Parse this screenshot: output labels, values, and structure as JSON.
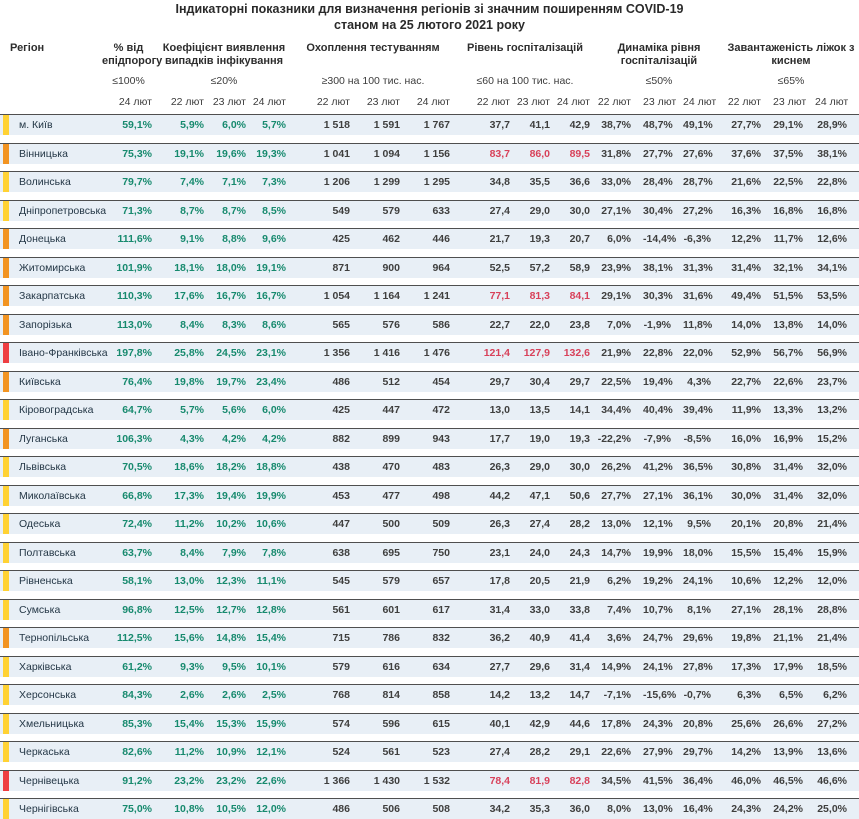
{
  "title": {
    "line1": "Індикаторні показники для визначення регіонів зі значним поширенням COVID-19",
    "line2": "станом на 25 лютого 2021 року"
  },
  "colors": {
    "yellow": "#FFD234",
    "orange": "#F29422",
    "red": "#EE3E42",
    "teal_text": "#178a6e",
    "dark_text": "#3f3f3e",
    "red_text": "#d8415a",
    "row_bg": "#e8eff6"
  },
  "chart_data": {
    "type": "table",
    "title": "Індикаторні показники для визначення регіонів зі значним поширенням COVID-19 станом на 25 лютого 2021 року",
    "region_header": "Регіон",
    "groups": [
      {
        "label": "% від епідпорогу",
        "threshold": "≤100%",
        "dates": [
          "24 лют"
        ]
      },
      {
        "label": "Коефіцієнт виявлення випадків інфікування",
        "threshold": "≤20%",
        "dates": [
          "22 лют",
          "23 лют",
          "24 лют"
        ]
      },
      {
        "label": "Охоплення тестуванням",
        "threshold": "≥300 на 100 тис. нас.",
        "dates": [
          "22 лют",
          "23 лют",
          "24 лют"
        ]
      },
      {
        "label": "Рівень госпіталізацій",
        "threshold": "≤60 на 100 тис. нас.",
        "dates": [
          "22 лют",
          "23 лют",
          "24 лют"
        ]
      },
      {
        "label": "Динаміка рівня госпіталізацій",
        "threshold": "≤50%",
        "dates": [
          "22 лют",
          "23 лют",
          "24 лют"
        ]
      },
      {
        "label": "Завантаженість ліжок з киснем",
        "threshold": "≤65%",
        "dates": [
          "22 лют",
          "23 лют",
          "24 лют"
        ]
      }
    ],
    "rows": [
      {
        "region": "м. Київ",
        "indicator": "yellow",
        "epid": "59,1%",
        "koef": [
          "5,9%",
          "6,0%",
          "5,7%"
        ],
        "test": [
          "1 518",
          "1 591",
          "1 767"
        ],
        "hosp": [
          "37,7",
          "41,1",
          "42,9"
        ],
        "hosp_red": false,
        "dyn": [
          "38,7%",
          "48,7%",
          "49,1%"
        ],
        "beds": [
          "27,7%",
          "29,1%",
          "28,9%"
        ]
      },
      {
        "region": "Вінницька",
        "indicator": "orange",
        "epid": "75,3%",
        "koef": [
          "19,1%",
          "19,6%",
          "19,3%"
        ],
        "test": [
          "1 041",
          "1 094",
          "1 156"
        ],
        "hosp": [
          "83,7",
          "86,0",
          "89,5"
        ],
        "hosp_red": true,
        "dyn": [
          "31,8%",
          "27,7%",
          "27,6%"
        ],
        "beds": [
          "37,6%",
          "37,5%",
          "38,1%"
        ]
      },
      {
        "region": "Волинська",
        "indicator": "yellow",
        "epid": "79,7%",
        "koef": [
          "7,4%",
          "7,1%",
          "7,3%"
        ],
        "test": [
          "1 206",
          "1 299",
          "1 295"
        ],
        "hosp": [
          "34,8",
          "35,5",
          "36,6"
        ],
        "hosp_red": false,
        "dyn": [
          "33,0%",
          "28,4%",
          "28,7%"
        ],
        "beds": [
          "21,6%",
          "22,5%",
          "22,8%"
        ]
      },
      {
        "region": "Дніпропетровська",
        "indicator": "yellow",
        "epid": "71,3%",
        "koef": [
          "8,7%",
          "8,7%",
          "8,5%"
        ],
        "test": [
          "549",
          "579",
          "633"
        ],
        "hosp": [
          "27,4",
          "29,0",
          "30,0"
        ],
        "hosp_red": false,
        "dyn": [
          "27,1%",
          "30,4%",
          "27,2%"
        ],
        "beds": [
          "16,3%",
          "16,8%",
          "16,8%"
        ]
      },
      {
        "region": "Донецька",
        "indicator": "orange",
        "epid": "111,6%",
        "koef": [
          "9,1%",
          "8,8%",
          "9,6%"
        ],
        "test": [
          "425",
          "462",
          "446"
        ],
        "hosp": [
          "21,7",
          "19,3",
          "20,7"
        ],
        "hosp_red": false,
        "dyn": [
          "6,0%",
          "-14,4%",
          "-6,3%"
        ],
        "beds": [
          "12,2%",
          "11,7%",
          "12,6%"
        ]
      },
      {
        "region": "Житомирська",
        "indicator": "orange",
        "epid": "101,9%",
        "koef": [
          "18,1%",
          "18,0%",
          "19,1%"
        ],
        "test": [
          "871",
          "900",
          "964"
        ],
        "hosp": [
          "52,5",
          "57,2",
          "58,9"
        ],
        "hosp_red": false,
        "dyn": [
          "23,9%",
          "38,1%",
          "31,3%"
        ],
        "beds": [
          "31,4%",
          "32,1%",
          "34,1%"
        ]
      },
      {
        "region": "Закарпатська",
        "indicator": "orange",
        "epid": "110,3%",
        "koef": [
          "17,6%",
          "16,7%",
          "16,7%"
        ],
        "test": [
          "1 054",
          "1 164",
          "1 241"
        ],
        "hosp": [
          "77,1",
          "81,3",
          "84,1"
        ],
        "hosp_red": true,
        "dyn": [
          "29,1%",
          "30,3%",
          "31,6%"
        ],
        "beds": [
          "49,4%",
          "51,5%",
          "53,5%"
        ]
      },
      {
        "region": "Запорізька",
        "indicator": "orange",
        "epid": "113,0%",
        "koef": [
          "8,4%",
          "8,3%",
          "8,6%"
        ],
        "test": [
          "565",
          "576",
          "586"
        ],
        "hosp": [
          "22,7",
          "22,0",
          "23,8"
        ],
        "hosp_red": false,
        "dyn": [
          "7,0%",
          "-1,9%",
          "11,8%"
        ],
        "beds": [
          "14,0%",
          "13,8%",
          "14,0%"
        ]
      },
      {
        "region": "Івано-Франківська",
        "indicator": "red",
        "epid": "197,8%",
        "koef": [
          "25,8%",
          "24,5%",
          "23,1%"
        ],
        "test": [
          "1 356",
          "1 416",
          "1 476"
        ],
        "hosp": [
          "121,4",
          "127,9",
          "132,6"
        ],
        "hosp_red": true,
        "dyn": [
          "21,9%",
          "22,8%",
          "22,0%"
        ],
        "beds": [
          "52,9%",
          "56,7%",
          "56,9%"
        ]
      },
      {
        "region": "Київська",
        "indicator": "orange",
        "epid": "76,4%",
        "koef": [
          "19,8%",
          "19,7%",
          "23,4%"
        ],
        "test": [
          "486",
          "512",
          "454"
        ],
        "hosp": [
          "29,7",
          "30,4",
          "29,7"
        ],
        "hosp_red": false,
        "dyn": [
          "22,5%",
          "19,4%",
          "4,3%"
        ],
        "beds": [
          "22,7%",
          "22,6%",
          "23,7%"
        ]
      },
      {
        "region": "Кіровоградська",
        "indicator": "yellow",
        "epid": "64,7%",
        "koef": [
          "5,7%",
          "5,6%",
          "6,0%"
        ],
        "test": [
          "425",
          "447",
          "472"
        ],
        "hosp": [
          "13,0",
          "13,5",
          "14,1"
        ],
        "hosp_red": false,
        "dyn": [
          "34,4%",
          "40,4%",
          "39,4%"
        ],
        "beds": [
          "11,9%",
          "13,3%",
          "13,2%"
        ]
      },
      {
        "region": "Луганська",
        "indicator": "orange",
        "epid": "106,3%",
        "koef": [
          "4,3%",
          "4,2%",
          "4,2%"
        ],
        "test": [
          "882",
          "899",
          "943"
        ],
        "hosp": [
          "17,7",
          "19,0",
          "19,3"
        ],
        "hosp_red": false,
        "dyn": [
          "-22,2%",
          "-7,9%",
          "-8,5%"
        ],
        "beds": [
          "16,0%",
          "16,9%",
          "15,2%"
        ]
      },
      {
        "region": "Львівська",
        "indicator": "yellow",
        "epid": "70,5%",
        "koef": [
          "18,6%",
          "18,2%",
          "18,8%"
        ],
        "test": [
          "438",
          "470",
          "483"
        ],
        "hosp": [
          "26,3",
          "29,0",
          "30,0"
        ],
        "hosp_red": false,
        "dyn": [
          "26,2%",
          "41,2%",
          "36,5%"
        ],
        "beds": [
          "30,8%",
          "31,4%",
          "32,0%"
        ]
      },
      {
        "region": "Миколаївська",
        "indicator": "yellow",
        "epid": "66,8%",
        "koef": [
          "17,3%",
          "19,4%",
          "19,9%"
        ],
        "test": [
          "453",
          "477",
          "498"
        ],
        "hosp": [
          "44,2",
          "47,1",
          "50,6"
        ],
        "hosp_red": false,
        "dyn": [
          "27,7%",
          "27,1%",
          "36,1%"
        ],
        "beds": [
          "30,0%",
          "31,4%",
          "32,0%"
        ]
      },
      {
        "region": "Одеська",
        "indicator": "yellow",
        "epid": "72,4%",
        "koef": [
          "11,2%",
          "10,2%",
          "10,6%"
        ],
        "test": [
          "447",
          "500",
          "509"
        ],
        "hosp": [
          "26,3",
          "27,4",
          "28,2"
        ],
        "hosp_red": false,
        "dyn": [
          "13,0%",
          "12,1%",
          "9,5%"
        ],
        "beds": [
          "20,1%",
          "20,8%",
          "21,4%"
        ]
      },
      {
        "region": "Полтавська",
        "indicator": "yellow",
        "epid": "63,7%",
        "koef": [
          "8,4%",
          "7,9%",
          "7,8%"
        ],
        "test": [
          "638",
          "695",
          "750"
        ],
        "hosp": [
          "23,1",
          "24,0",
          "24,3"
        ],
        "hosp_red": false,
        "dyn": [
          "14,7%",
          "19,9%",
          "18,0%"
        ],
        "beds": [
          "15,5%",
          "15,4%",
          "15,9%"
        ]
      },
      {
        "region": "Рівненська",
        "indicator": "yellow",
        "epid": "58,1%",
        "koef": [
          "13,0%",
          "12,3%",
          "11,1%"
        ],
        "test": [
          "545",
          "579",
          "657"
        ],
        "hosp": [
          "17,8",
          "20,5",
          "21,9"
        ],
        "hosp_red": false,
        "dyn": [
          "6,2%",
          "19,2%",
          "24,1%"
        ],
        "beds": [
          "10,6%",
          "12,2%",
          "12,0%"
        ]
      },
      {
        "region": "Сумська",
        "indicator": "yellow",
        "epid": "96,8%",
        "koef": [
          "12,5%",
          "12,7%",
          "12,8%"
        ],
        "test": [
          "561",
          "601",
          "617"
        ],
        "hosp": [
          "31,4",
          "33,0",
          "33,8"
        ],
        "hosp_red": false,
        "dyn": [
          "7,4%",
          "10,7%",
          "8,1%"
        ],
        "beds": [
          "27,1%",
          "28,1%",
          "28,8%"
        ]
      },
      {
        "region": "Тернопільська",
        "indicator": "orange",
        "epid": "112,5%",
        "koef": [
          "15,6%",
          "14,8%",
          "15,4%"
        ],
        "test": [
          "715",
          "786",
          "832"
        ],
        "hosp": [
          "36,2",
          "40,9",
          "41,4"
        ],
        "hosp_red": false,
        "dyn": [
          "3,6%",
          "24,7%",
          "29,6%"
        ],
        "beds": [
          "19,8%",
          "21,1%",
          "21,4%"
        ]
      },
      {
        "region": "Харківська",
        "indicator": "yellow",
        "epid": "61,2%",
        "koef": [
          "9,3%",
          "9,5%",
          "10,1%"
        ],
        "test": [
          "579",
          "616",
          "634"
        ],
        "hosp": [
          "27,7",
          "29,6",
          "31,4"
        ],
        "hosp_red": false,
        "dyn": [
          "14,9%",
          "24,1%",
          "27,8%"
        ],
        "beds": [
          "17,3%",
          "17,9%",
          "18,5%"
        ]
      },
      {
        "region": "Херсонська",
        "indicator": "yellow",
        "epid": "84,3%",
        "koef": [
          "2,6%",
          "2,6%",
          "2,5%"
        ],
        "test": [
          "768",
          "814",
          "858"
        ],
        "hosp": [
          "14,2",
          "13,2",
          "14,7"
        ],
        "hosp_red": false,
        "dyn": [
          "-7,1%",
          "-15,6%",
          "-0,7%"
        ],
        "beds": [
          "6,3%",
          "6,5%",
          "6,2%"
        ]
      },
      {
        "region": "Хмельницька",
        "indicator": "yellow",
        "epid": "85,3%",
        "koef": [
          "15,4%",
          "15,3%",
          "15,9%"
        ],
        "test": [
          "574",
          "596",
          "615"
        ],
        "hosp": [
          "40,1",
          "42,9",
          "44,6"
        ],
        "hosp_red": false,
        "dyn": [
          "17,8%",
          "24,3%",
          "20,8%"
        ],
        "beds": [
          "25,6%",
          "26,6%",
          "27,2%"
        ]
      },
      {
        "region": "Черкаська",
        "indicator": "yellow",
        "epid": "82,6%",
        "koef": [
          "11,2%",
          "10,9%",
          "12,1%"
        ],
        "test": [
          "524",
          "561",
          "523"
        ],
        "hosp": [
          "27,4",
          "28,2",
          "29,1"
        ],
        "hosp_red": false,
        "dyn": [
          "22,6%",
          "27,9%",
          "29,7%"
        ],
        "beds": [
          "14,2%",
          "13,9%",
          "13,6%"
        ]
      },
      {
        "region": "Чернівецька",
        "indicator": "red",
        "epid": "91,2%",
        "koef": [
          "23,2%",
          "23,2%",
          "22,6%"
        ],
        "test": [
          "1 366",
          "1 430",
          "1 532"
        ],
        "hosp": [
          "78,4",
          "81,9",
          "82,8"
        ],
        "hosp_red": true,
        "dyn": [
          "34,5%",
          "41,5%",
          "36,4%"
        ],
        "beds": [
          "46,0%",
          "46,5%",
          "46,6%"
        ]
      },
      {
        "region": "Чернігівська",
        "indicator": "yellow",
        "epid": "75,0%",
        "koef": [
          "10,8%",
          "10,5%",
          "12,0%"
        ],
        "test": [
          "486",
          "506",
          "508"
        ],
        "hosp": [
          "34,2",
          "35,3",
          "36,0"
        ],
        "hosp_red": false,
        "dyn": [
          "8,0%",
          "13,0%",
          "16,4%"
        ],
        "beds": [
          "24,3%",
          "24,2%",
          "25,0%"
        ]
      }
    ]
  }
}
